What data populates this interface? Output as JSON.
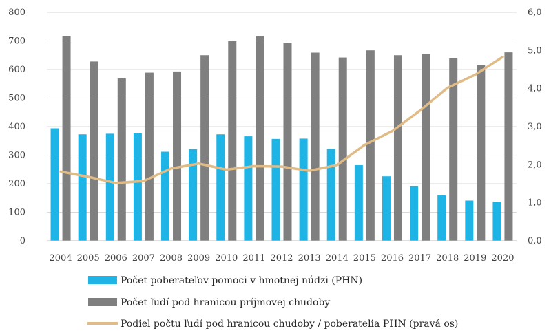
{
  "chart_data": {
    "type": "bar",
    "categories": [
      "2004",
      "2005",
      "2006",
      "2007",
      "2008",
      "2009",
      "2010",
      "2011",
      "2012",
      "2013",
      "2014",
      "2015",
      "2016",
      "2017",
      "2018",
      "2019",
      "2020"
    ],
    "series": [
      {
        "name": "Počet poberateľov pomoci v hmotnej núdzi (PHN)",
        "type": "bar",
        "axis": "left",
        "color": "#1EB4E6",
        "values": [
          394,
          373,
          375,
          376,
          312,
          321,
          373,
          366,
          357,
          358,
          322,
          265,
          226,
          191,
          159,
          141,
          137
        ]
      },
      {
        "name": "Počet ľudí pod hranicou príjmovej chudoby",
        "type": "bar",
        "axis": "left",
        "color": "#7F7F7F",
        "values": [
          717,
          628,
          569,
          589,
          593,
          650,
          700,
          716,
          694,
          659,
          642,
          667,
          650,
          654,
          639,
          615,
          660
        ]
      },
      {
        "name": "Podiel počtu ľudí pod hranicou chudoby / poberatelia PHN  (pravá os)",
        "type": "line",
        "axis": "right",
        "color": "#E0BB86",
        "values": [
          1.82,
          1.68,
          1.52,
          1.57,
          1.9,
          2.03,
          1.87,
          1.96,
          1.95,
          1.84,
          1.99,
          2.52,
          2.88,
          3.42,
          4.02,
          4.36,
          4.83
        ]
      }
    ],
    "y_left": {
      "min": 0,
      "max": 800,
      "ticks": [
        "0",
        "100",
        "200",
        "300",
        "400",
        "500",
        "600",
        "700",
        "800"
      ]
    },
    "y_right": {
      "min": 0,
      "max": 6,
      "ticks": [
        "0,0",
        "1,0",
        "2,0",
        "3,0",
        "4,0",
        "5,0",
        "6,0"
      ]
    },
    "grid": true,
    "legend": "bottom"
  }
}
